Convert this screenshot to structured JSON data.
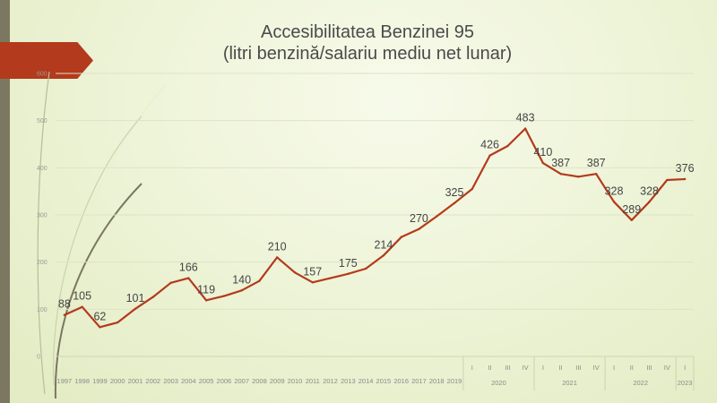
{
  "chart_data": {
    "type": "line",
    "title": "Accesibilitatea Benzinei 95",
    "subtitle": "(litri benzină/salariu mediu net lunar)",
    "ylim": [
      0,
      600
    ],
    "yticks": [
      "0",
      "100",
      "200",
      "300",
      "400",
      "500",
      "600"
    ],
    "grid": true,
    "colors": {
      "line": "#b33a1c",
      "grid": "#dde4c6"
    },
    "categories": [
      "1997",
      "1998",
      "1999",
      "2000",
      "2001",
      "2002",
      "2003",
      "2004",
      "2005",
      "2006",
      "2007",
      "2008",
      "2009",
      "2010",
      "2011",
      "2012",
      "2013",
      "2014",
      "2015",
      "2016",
      "2017",
      "2018",
      "2019",
      "I",
      "II",
      "III",
      "IV",
      "I",
      "II",
      "III",
      "IV",
      "I",
      "II",
      "III",
      "IV",
      "I"
    ],
    "year_groups": [
      {
        "label": "2020",
        "start": 23,
        "end": 26
      },
      {
        "label": "2021",
        "start": 27,
        "end": 30
      },
      {
        "label": "2022",
        "start": 31,
        "end": 34
      },
      {
        "label": "2023",
        "start": 35,
        "end": 35
      }
    ],
    "series": [
      {
        "values": [
          88,
          105,
          62,
          72,
          101,
          126,
          156,
          166,
          119,
          128,
          140,
          160,
          210,
          178,
          157,
          166,
          175,
          186,
          214,
          253,
          270,
          297,
          325,
          355,
          426,
          446,
          483,
          410,
          387,
          381,
          387,
          328,
          289,
          328,
          374,
          376
        ],
        "labels": [
          "88",
          "105",
          "62",
          "",
          "101",
          "",
          "",
          "166",
          "119",
          "",
          "140",
          "",
          "210",
          "",
          "157",
          "",
          "175",
          "",
          "214",
          "",
          "270",
          "",
          "325",
          "",
          "426",
          "",
          "483",
          "410",
          "387",
          "",
          "387",
          "328",
          "289",
          "328",
          "",
          "376"
        ]
      }
    ]
  }
}
